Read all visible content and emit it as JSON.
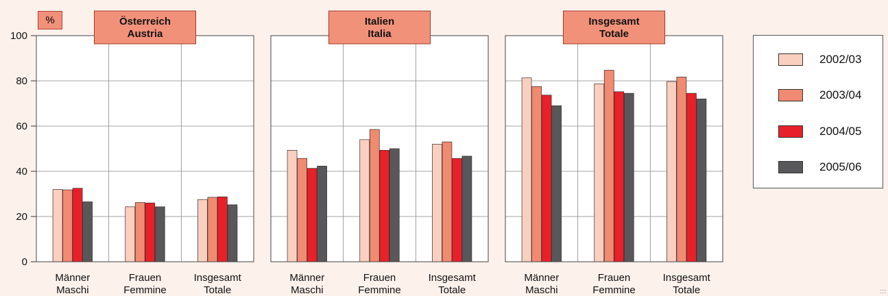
{
  "unit_label": "%",
  "chart_data": {
    "type": "bar",
    "ylim": [
      0,
      100
    ],
    "yticks": [
      0,
      20,
      40,
      60,
      80,
      100
    ],
    "grid": true,
    "legend_position": "right",
    "series": [
      {
        "name": "2002/03",
        "color": "#f9cfbf"
      },
      {
        "name": "2003/04",
        "color": "#f08a70"
      },
      {
        "name": "2004/05",
        "color": "#e8202a"
      },
      {
        "name": "2005/06",
        "color": "#58585a"
      }
    ],
    "categories": [
      {
        "line1": "Männer",
        "line2": "Maschi"
      },
      {
        "line1": "Frauen",
        "line2": "Femmine"
      },
      {
        "line1": "Insgesamt",
        "line2": "Totale"
      }
    ],
    "panels": [
      {
        "title_line1": "Österreich",
        "title_line2": "Austria",
        "values": [
          [
            32,
            31.8,
            32.5,
            26.5
          ],
          [
            24.3,
            26.2,
            26,
            24.3
          ],
          [
            27.5,
            28.5,
            28.7,
            25.2
          ]
        ]
      },
      {
        "title_line1": "Italien",
        "title_line2": "Italia",
        "values": [
          [
            49.3,
            45.7,
            41.3,
            42.3
          ],
          [
            54,
            58.5,
            49.3,
            50
          ],
          [
            52,
            53,
            45.7,
            46.7
          ]
        ]
      },
      {
        "title_line1": "Insgesamt",
        "title_line2": "Totale",
        "values": [
          [
            81.3,
            77.5,
            73.7,
            69
          ],
          [
            78.7,
            84.7,
            75.2,
            74.5
          ],
          [
            79.7,
            81.7,
            74.5,
            72
          ]
        ]
      }
    ]
  },
  "corner_mark": "::::"
}
